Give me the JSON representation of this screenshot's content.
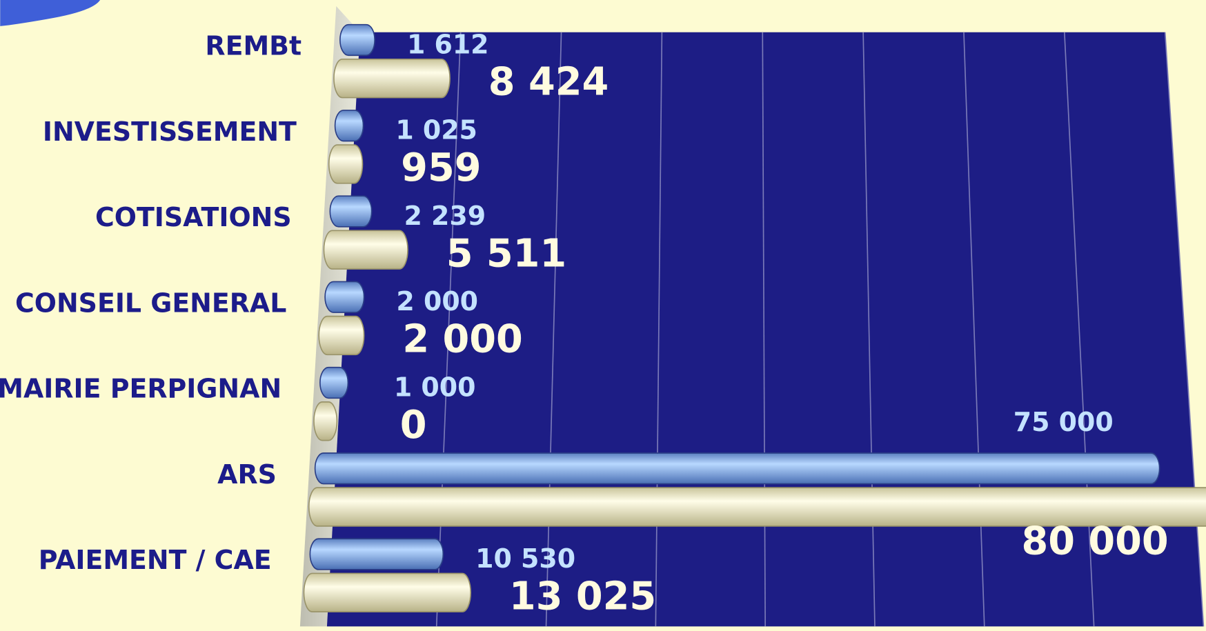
{
  "chart_data": {
    "type": "bar",
    "orientation": "horizontal",
    "categories": [
      "REMBt",
      "INVESTISSEMENT",
      "COTISATIONS",
      "CONSEIL GENERAL",
      "MAIRIE PERPIGNAN",
      "ARS",
      "PAIEMENT / CAE"
    ],
    "series": [
      {
        "color": "#8fb8ee",
        "values": [
          1612,
          1025,
          2239,
          2000,
          1000,
          75000,
          10530
        ],
        "value_labels": [
          "1 612",
          "1 025",
          "2 239",
          "2 000",
          "1 000",
          "75 000",
          "10 530"
        ]
      },
      {
        "color": "#f7f3c8",
        "values": [
          8424,
          959,
          5511,
          2000,
          0,
          80000,
          13025
        ],
        "value_labels": [
          "8 424",
          "959",
          "5 511",
          "2 000",
          "0",
          "80 000",
          "13 025"
        ]
      }
    ],
    "xlim": [
      0,
      80000
    ],
    "xticks": [
      0,
      10000,
      20000,
      30000,
      40000,
      50000,
      60000,
      70000,
      80000
    ],
    "grid": true
  }
}
